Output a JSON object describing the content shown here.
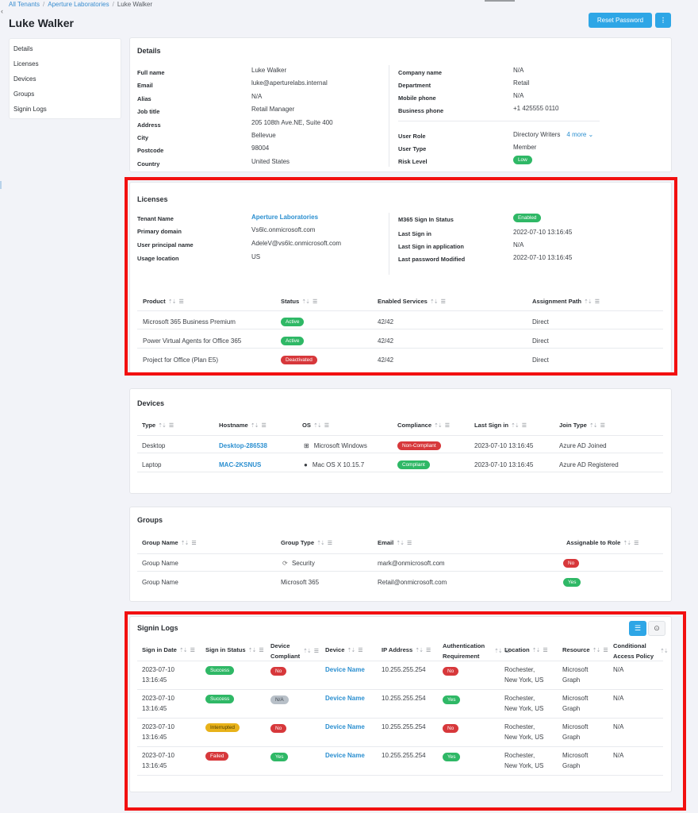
{
  "breadcrumb": {
    "items": [
      "All Tenants",
      "Aperture Laboratories"
    ],
    "current": "Luke Walker"
  },
  "page_title": "Luke Walker",
  "actions": {
    "reset_password": "Reset Password",
    "more": "⋮"
  },
  "nav": [
    "Details",
    "Licenses",
    "Devices",
    "Groups",
    "Signin Logs"
  ],
  "details": {
    "title": "Details",
    "left": [
      {
        "label": "Full name",
        "value": "Luke Walker"
      },
      {
        "label": "Email",
        "value": "luke@aperturelabs.internal"
      },
      {
        "label": "Alias",
        "value": "N/A"
      },
      {
        "label": "Job title",
        "value": "Retail Manager"
      },
      {
        "label": "Address",
        "value": "205 108th Ave.NE, Suite 400"
      },
      {
        "label": "City",
        "value": "Bellevue"
      },
      {
        "label": "Postcode",
        "value": "98004"
      },
      {
        "label": "Country",
        "value": "United States"
      }
    ],
    "right_top": [
      {
        "label": "Company name",
        "value": "N/A"
      },
      {
        "label": "Department",
        "value": "Retail"
      },
      {
        "label": "Mobile phone",
        "value": "N/A"
      },
      {
        "label": "Business phone",
        "value": "+1 425555 0110"
      }
    ],
    "user_role_label": "User Role",
    "user_role_value": "Directory Writers",
    "user_role_more": "4 more",
    "user_type_label": "User Type",
    "user_type_value": "Member",
    "risk_level_label": "Risk Level",
    "risk_level_value": "Low"
  },
  "licenses": {
    "title": "Licenses",
    "tenant_name_label": "Tenant Name",
    "tenant_name_value": "Aperture Laboratories",
    "primary_domain_label": "Primary domain",
    "primary_domain_value": "Vs6lc.onmicrosoft.com",
    "upn_label": "User principal name",
    "upn_value": "AdeleV@vs6lc.onmicrosoft.com",
    "usage_location_label": "Usage location",
    "usage_location_value": "US",
    "m365_status_label": "M365 Sign In Status",
    "m365_status_value": "Enabled",
    "last_signin_label": "Last Sign in",
    "last_signin_value": "2022-07-10 13:16:45",
    "last_signin_app_label": "Last Sign in application",
    "last_signin_app_value": "N/A",
    "last_pw_label": "Last password Modified",
    "last_pw_value": "2022-07-10 13:16:45",
    "columns": [
      "Product",
      "Status",
      "Enabled Services",
      "Assignment Path"
    ],
    "rows": [
      {
        "product": "Microsoft 365 Business Premium",
        "status": "Active",
        "services": "42/42",
        "path": "Direct"
      },
      {
        "product": "Power Virtual Agents for Office 365",
        "status": "Active",
        "services": "42/42",
        "path": "Direct"
      },
      {
        "product": "Project for Office (Plan E5)",
        "status": "Deactivated",
        "services": "42/42",
        "path": "Direct"
      }
    ]
  },
  "devices": {
    "title": "Devices",
    "columns": [
      "Type",
      "Hostname",
      "OS",
      "Compliance",
      "Last Sign in",
      "Join Type"
    ],
    "rows": [
      {
        "type": "Desktop",
        "hostname": "Desktop-286538",
        "os": "Microsoft Windows",
        "os_icon": "windows-icon",
        "compliance": "Non-Compliant",
        "last": "2023-07-10 13:16:45",
        "join": "Azure AD Joined"
      },
      {
        "type": "Laptop",
        "hostname": "MAC-2KSNUS",
        "os": "Mac OS X 10.15.7",
        "os_icon": "apple-icon",
        "compliance": "Compliant",
        "last": "2023-07-10 13:16:45",
        "join": "Azure AD Registered"
      }
    ]
  },
  "groups": {
    "title": "Groups",
    "columns": [
      "Group Name",
      "Group Type",
      "Email",
      "Assignable to Role"
    ],
    "rows": [
      {
        "name": "Group Name",
        "type": "Security",
        "email": "mark@onmicrosoft.com",
        "assignable": "No"
      },
      {
        "name": "Group Name",
        "type": "Microsoft 365",
        "email": "Retail@onmicrosoft.com",
        "assignable": "Yes"
      }
    ]
  },
  "signin_logs": {
    "title": "Signin Logs",
    "columns": [
      "Sign in Date",
      "Sign in Status",
      "Device Compliant",
      "Device",
      "IP Address",
      "Authentication Requirement",
      "Location",
      "Resource",
      "Conditional Access Policy"
    ],
    "rows": [
      {
        "date": "2023-07-10",
        "time": "13:16:45",
        "status": "Success",
        "compliant": "No",
        "device": "Device Name",
        "ip": "10.255.255.254",
        "auth": "No",
        "loc1": "Rochester,",
        "loc2": "New York, US",
        "res1": "Microsoft",
        "res2": "Graph",
        "cap": "N/A"
      },
      {
        "date": "2023-07-10",
        "time": "13:16:45",
        "status": "Success",
        "compliant": "N/A",
        "device": "Device Name",
        "ip": "10.255.255.254",
        "auth": "Yes",
        "loc1": "Rochester,",
        "loc2": "New York, US",
        "res1": "Microsoft",
        "res2": "Graph",
        "cap": "N/A"
      },
      {
        "date": "2023-07-10",
        "time": "13:16:45",
        "status": "Interrupted",
        "compliant": "No",
        "device": "Device Name",
        "ip": "10.255.255.254",
        "auth": "No",
        "loc1": "Rochester,",
        "loc2": "New York, US",
        "res1": "Microsoft",
        "res2": "Graph",
        "cap": "N/A"
      },
      {
        "date": "2023-07-10",
        "time": "13:16:45",
        "status": "Failed",
        "compliant": "Yes",
        "device": "Device Name",
        "ip": "10.255.255.254",
        "auth": "Yes",
        "loc1": "Rochester,",
        "loc2": "New York, US",
        "res1": "Microsoft",
        "res2": "Graph",
        "cap": "N/A"
      }
    ]
  },
  "colors": {
    "accent": "#2ea6e6",
    "link": "#2b8fd0",
    "success": "#2fb866",
    "danger": "#d7383b",
    "warning": "#e8b21a",
    "highlight": "#f21010"
  }
}
